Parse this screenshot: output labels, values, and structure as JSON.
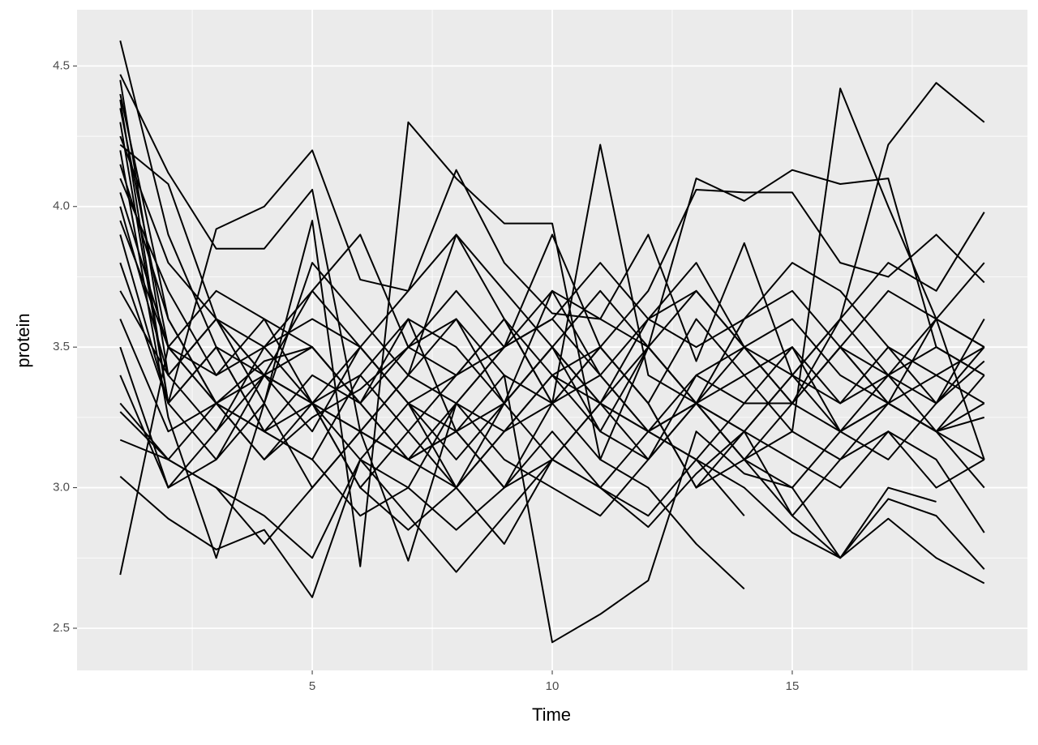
{
  "chart_data": {
    "type": "line",
    "x_label": "Time",
    "y_label": "protein",
    "color": "#000000",
    "grid": true,
    "x": [
      1,
      2,
      3,
      4,
      5,
      6,
      7,
      8,
      9,
      10,
      11,
      12,
      13,
      14,
      15,
      16,
      17,
      18,
      19
    ],
    "xlim": [
      0.1,
      19.9
    ],
    "xticks": [
      5,
      10,
      15
    ],
    "xminor": [
      2.5,
      7.5,
      12.5,
      17.5
    ],
    "ylim": [
      2.35,
      4.7
    ],
    "yticks": [
      {
        "value": 2.5,
        "label": "2.5"
      },
      {
        "value": 3,
        "label": "3.0"
      },
      {
        "value": 3.5,
        "label": "3.5"
      },
      {
        "value": 4,
        "label": "4.0"
      },
      {
        "value": 4.5,
        "label": "4.5"
      }
    ],
    "yminor": [
      2.75,
      3.25,
      3.75,
      4.25
    ],
    "series": [
      {
        "values": [
          4.59,
          3.9,
          3.5,
          3.4,
          3.3,
          3.2,
          3.1,
          3.3,
          3.5,
          3.6,
          3.4,
          3.2,
          3.4,
          3.5,
          3.3,
          3.2,
          3.4,
          3.5,
          3.4
        ]
      },
      {
        "values": [
          2.69,
          3.5,
          3.3,
          3.2,
          3.4,
          3.3,
          3.1,
          3.2,
          3.0,
          3.1,
          3.3,
          3.2,
          3.1,
          2.9,
          null,
          null,
          null,
          null,
          null
        ]
      },
      {
        "values": [
          4.47,
          4.12,
          3.85,
          3.85,
          4.06,
          3.2,
          2.74,
          3.3,
          3.5,
          3.9,
          3.5,
          3.3,
          3.6,
          3.4,
          3.2,
          4.42,
          4.0,
          3.6,
          3.1
        ]
      },
      {
        "values": [
          4.3,
          3.3,
          3.92,
          4.0,
          4.2,
          3.74,
          3.7,
          4.13,
          3.8,
          3.62,
          3.6,
          3.9,
          3.45,
          3.87,
          3.4,
          3.6,
          4.22,
          4.44,
          4.3
        ]
      },
      {
        "values": [
          3.04,
          2.89,
          2.78,
          2.85,
          2.61,
          3.1,
          3.3,
          3.2,
          3.4,
          2.45,
          2.55,
          2.67,
          3.2,
          3.05,
          3.0,
          2.75,
          2.89,
          2.75,
          2.66
        ]
      },
      {
        "values": [
          4.2,
          3.25,
          2.75,
          3.3,
          3.95,
          2.72,
          4.3,
          4.1,
          3.94,
          3.94,
          3.1,
          3.5,
          4.1,
          4.02,
          4.13,
          4.08,
          4.1,
          3.5,
          3.4
        ]
      },
      {
        "values": [
          4.4,
          3.6,
          3.3,
          3.1,
          3.25,
          3.35,
          3.5,
          3.4,
          3.6,
          3.3,
          4.22,
          3.4,
          3.3,
          3.1,
          3.0,
          3.2,
          3.3,
          3.2,
          3.1
        ]
      },
      {
        "values": [
          3.5,
          3.0,
          3.2,
          3.5,
          3.3,
          3.0,
          3.2,
          3.0,
          2.8,
          3.1,
          3.3,
          3.5,
          3.7,
          3.5,
          3.4,
          3.2,
          3.1,
          3.3,
          3.5
        ]
      },
      {
        "values": [
          4.0,
          3.4,
          3.6,
          3.3,
          3.8,
          3.6,
          3.4,
          3.9,
          3.7,
          3.5,
          3.3,
          3.6,
          3.8,
          3.5,
          3.3,
          3.5,
          3.7,
          3.6,
          3.8
        ]
      },
      {
        "values": [
          3.3,
          3.1,
          3.0,
          2.9,
          2.75,
          3.1,
          2.9,
          2.7,
          2.9,
          3.1,
          3.0,
          3.2,
          3.3,
          3.1,
          2.9,
          2.75,
          2.96,
          2.9,
          2.71
        ]
      },
      {
        "values": [
          4.35,
          3.5,
          3.4,
          3.5,
          3.6,
          3.5,
          3.3,
          3.4,
          3.5,
          3.7,
          3.6,
          3.5,
          3.3,
          3.6,
          3.8,
          3.7,
          3.5,
          3.3,
          3.6
        ]
      },
      {
        "values": [
          3.9,
          3.3,
          3.5,
          3.2,
          3.1,
          3.4,
          3.6,
          3.2,
          3.0,
          3.3,
          3.1,
          3.0,
          2.8,
          2.64,
          null,
          null,
          null,
          null,
          null
        ]
      },
      {
        "values": [
          4.1,
          3.7,
          3.4,
          3.6,
          3.3,
          3.1,
          3.0,
          3.3,
          3.2,
          3.4,
          3.5,
          3.3,
          3.0,
          3.2,
          3.4,
          3.3,
          3.5,
          3.4,
          3.3
        ]
      },
      {
        "values": [
          3.6,
          3.2,
          3.3,
          3.45,
          3.5,
          3.3,
          3.1,
          3.2,
          3.3,
          3.5,
          3.2,
          3.1,
          3.3,
          3.5,
          3.6,
          3.4,
          3.3,
          3.2,
          3.0
        ]
      },
      {
        "values": [
          4.25,
          3.8,
          3.6,
          3.5,
          3.7,
          3.9,
          3.5,
          3.6,
          3.4,
          3.3,
          3.5,
          3.7,
          4.06,
          4.05,
          4.05,
          3.8,
          3.75,
          3.9,
          3.73
        ]
      },
      {
        "values": [
          3.8,
          3.3,
          3.5,
          3.2,
          3.1,
          2.9,
          3.0,
          2.85,
          3.0,
          3.2,
          3.0,
          2.9,
          3.1,
          3.0,
          2.84,
          2.75,
          3.0,
          2.95,
          null
        ]
      },
      {
        "values": [
          4.45,
          3.4,
          3.2,
          3.4,
          3.3,
          3.2,
          3.4,
          3.6,
          3.3,
          3.5,
          3.3,
          3.2,
          3.3,
          3.4,
          3.5,
          3.2,
          3.3,
          3.4,
          3.5
        ]
      },
      {
        "values": [
          3.4,
          3.0,
          3.1,
          3.3,
          3.0,
          3.2,
          3.4,
          3.3,
          3.1,
          3.0,
          2.9,
          3.1,
          3.3,
          3.2,
          3.1,
          3.0,
          3.2,
          3.1,
          2.84
        ]
      },
      {
        "values": [
          4.05,
          3.5,
          3.7,
          3.6,
          3.5,
          3.3,
          3.6,
          3.5,
          3.3,
          3.7,
          3.4,
          3.6,
          3.5,
          3.6,
          3.7,
          3.5,
          3.4,
          3.6,
          3.5
        ]
      },
      {
        "values": [
          3.27,
          3.1,
          3.0,
          2.8,
          3.0,
          3.2,
          3.1,
          3.0,
          3.2,
          3.3,
          3.5,
          3.3,
          3.0,
          3.1,
          3.2,
          3.1,
          3.3,
          3.2,
          3.4
        ]
      },
      {
        "values": [
          4.15,
          3.6,
          3.3,
          3.4,
          3.2,
          3.5,
          3.7,
          3.9,
          3.6,
          3.4,
          3.2,
          3.5,
          3.3,
          3.1,
          3.3,
          3.5,
          3.3,
          3.2,
          3.3
        ]
      },
      {
        "values": [
          3.7,
          3.4,
          3.6,
          3.4,
          3.3,
          3.5,
          3.3,
          3.1,
          3.3,
          3.5,
          3.7,
          3.5,
          3.3,
          3.2,
          3.4,
          3.6,
          3.4,
          3.3,
          3.45
        ]
      },
      {
        "values": [
          4.38,
          3.3,
          3.1,
          3.4,
          3.7,
          3.5,
          3.3,
          3.0,
          3.2,
          3.4,
          3.3,
          3.1,
          3.4,
          3.3,
          3.3,
          3.5,
          3.3,
          3.6,
          3.5
        ]
      },
      {
        "values": [
          3.95,
          3.5,
          3.3,
          3.1,
          3.3,
          3.4,
          3.2,
          3.4,
          3.6,
          3.3,
          3.4,
          3.2,
          3.1,
          3.3,
          3.5,
          3.3,
          3.4,
          3.2,
          3.25
        ]
      },
      {
        "values": [
          4.22,
          4.08,
          3.6,
          3.4,
          3.5,
          3.3,
          3.5,
          3.7,
          3.5,
          3.6,
          3.8,
          3.6,
          3.7,
          3.5,
          3.3,
          3.6,
          3.8,
          3.7,
          3.98
        ]
      },
      {
        "values": [
          3.17,
          3.1,
          3.3,
          3.2,
          3.3,
          3.0,
          2.85,
          3.0,
          3.3,
          3.1,
          3.0,
          2.86,
          3.05,
          3.2,
          2.9,
          3.1,
          3.2,
          3.0,
          3.1
        ]
      }
    ]
  }
}
